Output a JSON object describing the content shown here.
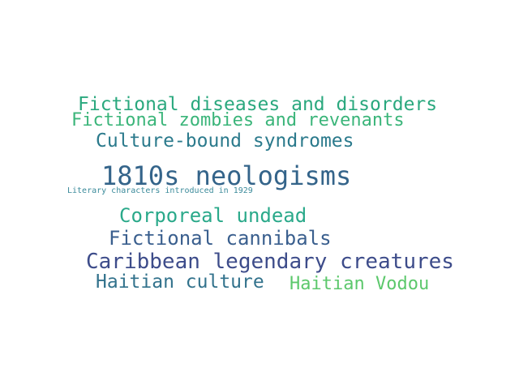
{
  "words": [
    {
      "text": "Fictional diseases and disorders",
      "color": "#2aa87e"
    },
    {
      "text": "Fictional zombies and revenants",
      "color": "#3bb57a"
    },
    {
      "text": "Culture-bound syndromes",
      "color": "#2b7a8c"
    },
    {
      "text": "1810s neologisms",
      "color": "#34648a"
    },
    {
      "text": "Literary characters introduced in 1929",
      "color": "#3a8a9a"
    },
    {
      "text": "Corporeal undead",
      "color": "#2aa98a"
    },
    {
      "text": "Fictional cannibals",
      "color": "#3a5f8e"
    },
    {
      "text": "Caribbean legendary creatures",
      "color": "#3d4c8a"
    },
    {
      "text": "Haitian culture",
      "color": "#32728c"
    },
    {
      "text": "Haitian Vodou",
      "color": "#5cc86c"
    }
  ]
}
